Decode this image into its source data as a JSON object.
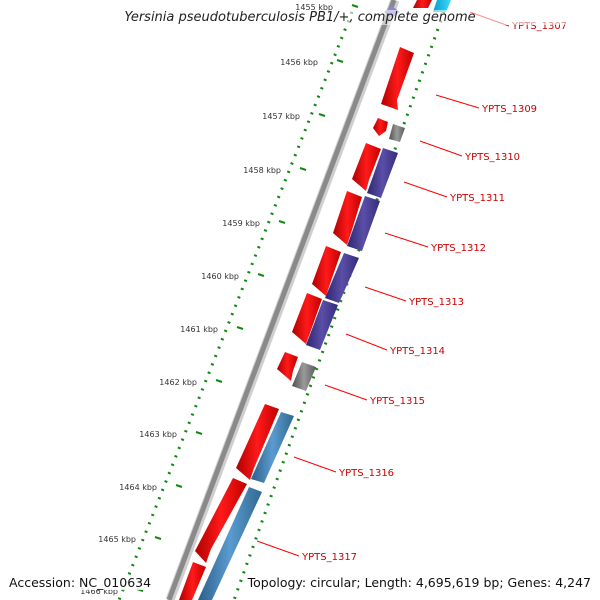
{
  "title": "Yersinia pseudotuberculosis PB1/+, complete genome",
  "footer": {
    "accession": "Accession: NC_010634",
    "topology": "Topology: circular; Length: 4,695,619 bp; Genes: 4,247"
  },
  "kbp_labels": [
    "1455 kbp",
    "1456 kbp",
    "1457 kbp",
    "1458 kbp",
    "1459 kbp",
    "1460 kbp",
    "1461 kbp",
    "1462 kbp",
    "1463 kbp",
    "1464 kbp",
    "1465 kbp",
    "1466 kbp"
  ],
  "gene_labels": [
    "YPTS_1307",
    "YPTS_1309",
    "YPTS_1310",
    "YPTS_1311",
    "YPTS_1312",
    "YPTS_1313",
    "YPTS_1314",
    "YPTS_1315",
    "YPTS_1316",
    "YPTS_1317"
  ],
  "colors": {
    "gene": "#ff0000",
    "gene_label": "#cc0000",
    "purple_feature": "#4b3f92",
    "gray_feature": "#7a7a7a",
    "steelblue_feature": "#4682b4",
    "cyan_feature": "#1ec8f0",
    "backbone": "#8a8a8a",
    "tick_track": "#118811"
  }
}
